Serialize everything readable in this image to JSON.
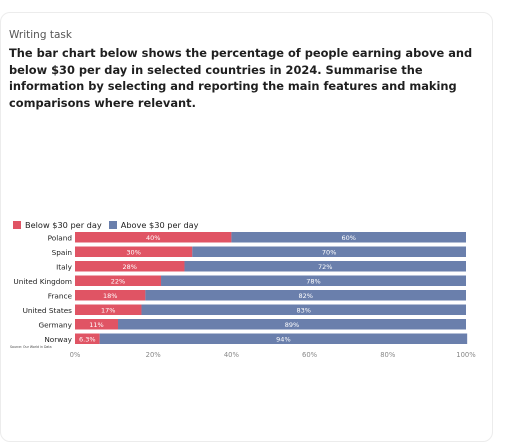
{
  "task": {
    "label": "Writing task",
    "prompt": "The bar chart below shows the percentage of people earning above and below $30 per day in selected countries in 2024. Summarise the information by selecting and reporting the main features and making comparisons where relevant."
  },
  "colors": {
    "below": "#e05464",
    "above": "#6a7fac"
  },
  "chart_data": {
    "type": "bar",
    "orientation": "horizontal",
    "stacked": true,
    "categories": [
      "Poland",
      "Spain",
      "Italy",
      "United Kingdom",
      "France",
      "United States",
      "Germany",
      "Norway"
    ],
    "series": [
      {
        "name": "Below $30 per day",
        "values": [
          40,
          30,
          28,
          22,
          18,
          17,
          11,
          6.3
        ],
        "labels": [
          "40%",
          "30%",
          "28%",
          "22%",
          "18%",
          "17%",
          "11%",
          "6.3%"
        ]
      },
      {
        "name": "Above $30 per day",
        "values": [
          60,
          70,
          72,
          78,
          82,
          83,
          89,
          94
        ],
        "labels": [
          "60%",
          "70%",
          "72%",
          "78%",
          "82%",
          "83%",
          "89%",
          "94%"
        ]
      }
    ],
    "xlim": [
      0,
      100
    ],
    "xticks": [
      "0%",
      "20%",
      "40%",
      "60%",
      "80%",
      "100%"
    ],
    "legend_position": "top-left",
    "grid": false,
    "source": "Source: Our World in Data"
  }
}
